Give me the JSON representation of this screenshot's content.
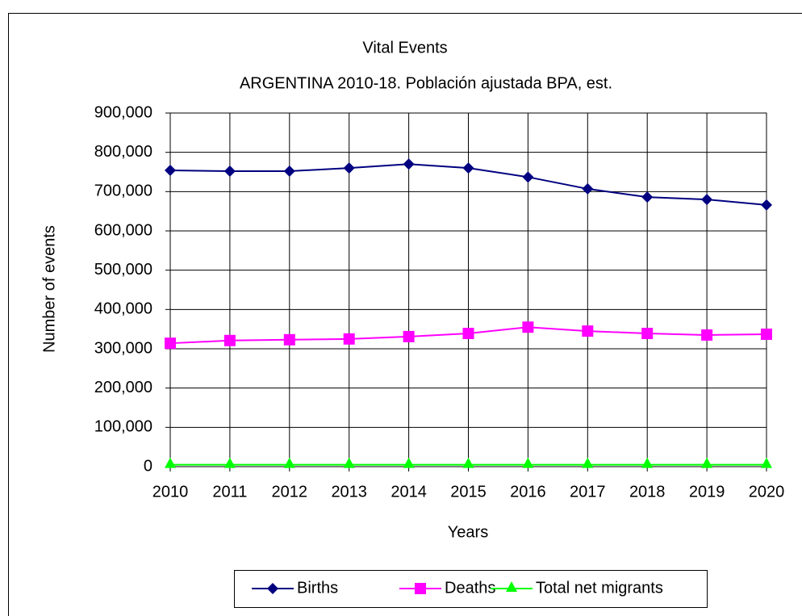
{
  "chart_data": {
    "type": "line",
    "title": "Vital Events",
    "subtitle": "ARGENTINA 2010-18. Población ajustada BPA, est.",
    "x_label": "Years",
    "y_label": "Number of events",
    "categories": [
      "2010",
      "2011",
      "2012",
      "2013",
      "2014",
      "2015",
      "2016",
      "2017",
      "2018",
      "2019",
      "2020"
    ],
    "series": [
      {
        "name": "Births",
        "color": "#000080",
        "marker": "diamond",
        "values": [
          754000,
          752000,
          752000,
          760000,
          770000,
          760000,
          737000,
          707000,
          686000,
          680000,
          666000
        ]
      },
      {
        "name": "Deaths",
        "color": "#ff00ff",
        "marker": "square",
        "values": [
          314000,
          321000,
          323000,
          325000,
          331000,
          339000,
          355000,
          345000,
          339000,
          335000,
          337000
        ]
      },
      {
        "name": "Total net migrants",
        "color": "#00ff00",
        "marker": "triangle",
        "values": [
          5000,
          5000,
          5000,
          5000,
          5000,
          5000,
          5000,
          5000,
          5000,
          5000,
          5000
        ]
      }
    ],
    "ylim": [
      0,
      900000
    ],
    "yticks": [
      0,
      {
        "value": 100000,
        "label": "100,000"
      },
      {
        "value": 200000,
        "label": "200,000"
      },
      {
        "value": 300000,
        "label": "300,000"
      },
      {
        "value": 400000,
        "label": "400,000"
      },
      {
        "value": 500000,
        "label": "500,000"
      },
      {
        "value": 600000,
        "label": "600,000"
      },
      {
        "value": 700000,
        "label": "700,000"
      },
      {
        "value": 800000,
        "label": "800,000"
      },
      {
        "value": 900000,
        "label": "900,000"
      }
    ],
    "grid": true,
    "legend": "bottom"
  }
}
